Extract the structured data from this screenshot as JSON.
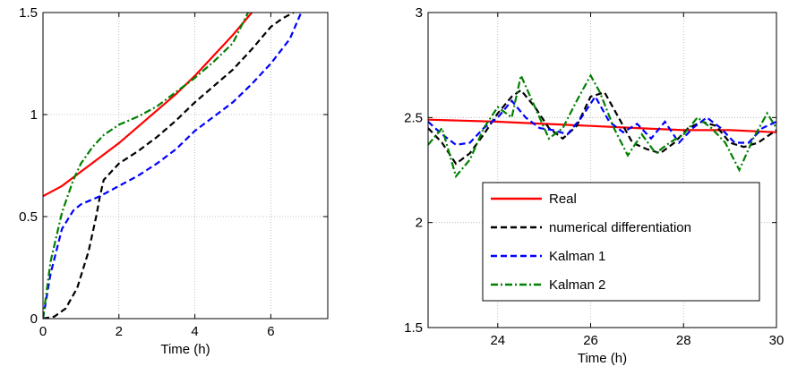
{
  "chart_data": [
    {
      "type": "line",
      "xlabel": "Time (h)",
      "ylabel": "",
      "xlim": [
        0,
        7.5
      ],
      "ylim": [
        0,
        1.5
      ],
      "xticks": [
        0,
        2,
        4,
        6
      ],
      "yticks": [
        0,
        0.5,
        1,
        1.5
      ],
      "xtick_labels": [
        "0",
        "2",
        "4",
        "6"
      ],
      "ytick_labels": [
        "0",
        "0.5",
        "1",
        "1.5"
      ],
      "grid": true,
      "series": [
        {
          "name": "Real",
          "color": "#ff0000",
          "dash": "solid",
          "x": [
            0,
            0.5,
            1,
            1.5,
            2,
            2.5,
            3,
            3.5,
            4,
            4.5,
            5,
            5.5
          ],
          "y": [
            0.6,
            0.65,
            0.72,
            0.79,
            0.86,
            0.94,
            1.02,
            1.1,
            1.19,
            1.29,
            1.39,
            1.5
          ]
        },
        {
          "name": "numerical differentiation",
          "color": "#000000",
          "dash": "dashed",
          "x": [
            0,
            0.3,
            0.6,
            0.9,
            1.2,
            1.4,
            1.5,
            1.6,
            2,
            2.5,
            3,
            3.5,
            4,
            4.5,
            5,
            5.5,
            6,
            6.3,
            6.6
          ],
          "y": [
            0,
            0.01,
            0.05,
            0.15,
            0.33,
            0.5,
            0.6,
            0.68,
            0.76,
            0.82,
            0.89,
            0.97,
            1.06,
            1.14,
            1.22,
            1.32,
            1.43,
            1.47,
            1.5
          ]
        },
        {
          "name": "Kalman 1",
          "color": "#0000ff",
          "dash": "dashed",
          "x": [
            0,
            0.2,
            0.5,
            0.8,
            1,
            1.5,
            2,
            2.5,
            3,
            3.5,
            4,
            4.5,
            5,
            5.5,
            6,
            6.5,
            6.8
          ],
          "y": [
            0,
            0.22,
            0.44,
            0.53,
            0.56,
            0.6,
            0.65,
            0.7,
            0.76,
            0.83,
            0.92,
            0.99,
            1.06,
            1.15,
            1.25,
            1.37,
            1.5
          ]
        },
        {
          "name": "Kalman 2",
          "color": "#008000",
          "dash": "dashdot",
          "x": [
            0,
            0.2,
            0.5,
            0.8,
            1,
            1.3,
            1.6,
            2,
            2.5,
            3,
            3.5,
            4,
            4.5,
            5,
            5.4
          ],
          "y": [
            0,
            0.28,
            0.52,
            0.68,
            0.76,
            0.84,
            0.9,
            0.95,
            0.99,
            1.04,
            1.11,
            1.18,
            1.26,
            1.35,
            1.5
          ]
        }
      ]
    },
    {
      "type": "line",
      "xlabel": "Time (h)",
      "ylabel": "",
      "xlim": [
        22.5,
        30
      ],
      "ylim": [
        1.5,
        3
      ],
      "xticks": [
        24,
        26,
        28,
        30
      ],
      "yticks": [
        1.5,
        2,
        2.5,
        3
      ],
      "xtick_labels": [
        "24",
        "26",
        "28",
        "30"
      ],
      "ytick_labels": [
        "1.5",
        "2",
        "2.5",
        "3"
      ],
      "grid": true,
      "legend": "lower-right",
      "series": [
        {
          "name": "Real",
          "color": "#ff0000",
          "dash": "solid",
          "x": [
            22.5,
            24,
            25,
            26,
            27,
            28,
            29,
            30
          ],
          "y": [
            2.49,
            2.48,
            2.47,
            2.46,
            2.45,
            2.44,
            2.44,
            2.43
          ]
        },
        {
          "name": "numerical differentiation",
          "color": "#000000",
          "dash": "dashed",
          "x": [
            22.5,
            22.8,
            23.1,
            23.4,
            23.7,
            24,
            24.3,
            24.5,
            24.8,
            25.1,
            25.4,
            25.7,
            26,
            26.3,
            26.6,
            26.9,
            27.2,
            27.5,
            27.8,
            28.1,
            28.4,
            28.7,
            29,
            29.3,
            29.6,
            30
          ],
          "y": [
            2.45,
            2.38,
            2.28,
            2.33,
            2.42,
            2.52,
            2.6,
            2.63,
            2.55,
            2.45,
            2.4,
            2.46,
            2.6,
            2.62,
            2.5,
            2.38,
            2.35,
            2.33,
            2.38,
            2.45,
            2.48,
            2.46,
            2.38,
            2.36,
            2.38,
            2.44
          ]
        },
        {
          "name": "Kalman 1",
          "color": "#0000ff",
          "dash": "dashed",
          "x": [
            22.5,
            22.8,
            23.1,
            23.4,
            23.7,
            24,
            24.3,
            24.6,
            24.9,
            25.2,
            25.5,
            25.8,
            26.1,
            26.4,
            26.7,
            27,
            27.3,
            27.6,
            27.9,
            28.2,
            28.5,
            28.8,
            29.1,
            29.4,
            29.7,
            30
          ],
          "y": [
            2.48,
            2.42,
            2.37,
            2.38,
            2.45,
            2.5,
            2.58,
            2.5,
            2.45,
            2.44,
            2.42,
            2.5,
            2.6,
            2.48,
            2.43,
            2.47,
            2.4,
            2.48,
            2.38,
            2.45,
            2.5,
            2.45,
            2.38,
            2.38,
            2.45,
            2.48
          ]
        },
        {
          "name": "Kalman 2",
          "color": "#008000",
          "dash": "dashdot",
          "x": [
            22.5,
            22.8,
            23.1,
            23.4,
            23.7,
            24,
            24.3,
            24.5,
            24.8,
            25.1,
            25.4,
            25.7,
            26,
            26.2,
            26.5,
            26.8,
            27.1,
            27.4,
            27.7,
            28,
            28.3,
            28.6,
            28.9,
            29.2,
            29.5,
            29.8,
            30
          ],
          "y": [
            2.37,
            2.45,
            2.22,
            2.3,
            2.45,
            2.55,
            2.5,
            2.7,
            2.55,
            2.4,
            2.45,
            2.58,
            2.7,
            2.62,
            2.45,
            2.32,
            2.42,
            2.33,
            2.38,
            2.42,
            2.5,
            2.45,
            2.38,
            2.25,
            2.4,
            2.52,
            2.45
          ]
        }
      ]
    }
  ]
}
